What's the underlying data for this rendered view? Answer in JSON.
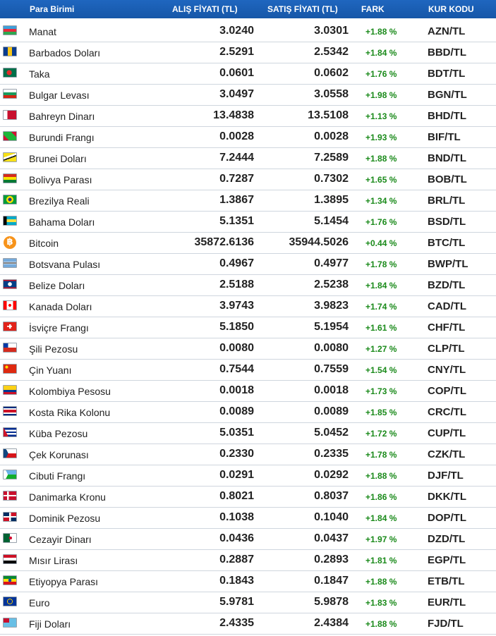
{
  "header": {
    "name": "Para Birimi",
    "buy": "ALIŞ FİYATI (TL)",
    "sell": "SATIŞ FİYATI (TL)",
    "diff": "FARK",
    "code": "KUR KODU"
  },
  "colors": {
    "header_bg": "#1a5fb4",
    "positive": "#1a8a1a",
    "row_border": "#cfd6de"
  },
  "rows": [
    {
      "name": "Manat",
      "buy": "3.0240",
      "sell": "3.0301",
      "diff": "+1.88 %",
      "code": "AZN/TL",
      "flag": "az"
    },
    {
      "name": "Barbados Doları",
      "buy": "2.5291",
      "sell": "2.5342",
      "diff": "+1.84 %",
      "code": "BBD/TL",
      "flag": "bb"
    },
    {
      "name": "Taka",
      "buy": "0.0601",
      "sell": "0.0602",
      "diff": "+1.76 %",
      "code": "BDT/TL",
      "flag": "bd"
    },
    {
      "name": "Bulgar Levası",
      "buy": "3.0497",
      "sell": "3.0558",
      "diff": "+1.98 %",
      "code": "BGN/TL",
      "flag": "bg"
    },
    {
      "name": "Bahreyn Dinarı",
      "buy": "13.4838",
      "sell": "13.5108",
      "diff": "+1.13 %",
      "code": "BHD/TL",
      "flag": "bh"
    },
    {
      "name": "Burundi Frangı",
      "buy": "0.0028",
      "sell": "0.0028",
      "diff": "+1.93 %",
      "code": "BIF/TL",
      "flag": "bi"
    },
    {
      "name": "Brunei Doları",
      "buy": "7.2444",
      "sell": "7.2589",
      "diff": "+1.88 %",
      "code": "BND/TL",
      "flag": "bn"
    },
    {
      "name": "Bolivya Parası",
      "buy": "0.7287",
      "sell": "0.7302",
      "diff": "+1.65 %",
      "code": "BOB/TL",
      "flag": "bo"
    },
    {
      "name": "Brezilya Reali",
      "buy": "1.3867",
      "sell": "1.3895",
      "diff": "+1.34 %",
      "code": "BRL/TL",
      "flag": "br"
    },
    {
      "name": "Bahama Doları",
      "buy": "5.1351",
      "sell": "5.1454",
      "diff": "+1.76 %",
      "code": "BSD/TL",
      "flag": "bs"
    },
    {
      "name": "Bitcoin",
      "buy": "35872.6136",
      "sell": "35944.5026",
      "diff": "+0.44 %",
      "code": "BTC/TL",
      "flag": "btc"
    },
    {
      "name": "Botsvana Pulası",
      "buy": "0.4967",
      "sell": "0.4977",
      "diff": "+1.78 %",
      "code": "BWP/TL",
      "flag": "bw"
    },
    {
      "name": "Belize Doları",
      "buy": "2.5188",
      "sell": "2.5238",
      "diff": "+1.84 %",
      "code": "BZD/TL",
      "flag": "bz"
    },
    {
      "name": "Kanada Doları",
      "buy": "3.9743",
      "sell": "3.9823",
      "diff": "+1.74 %",
      "code": "CAD/TL",
      "flag": "ca"
    },
    {
      "name": "İsviçre Frangı",
      "buy": "5.1850",
      "sell": "5.1954",
      "diff": "+1.61 %",
      "code": "CHF/TL",
      "flag": "ch"
    },
    {
      "name": "Şili Pezosu",
      "buy": "0.0080",
      "sell": "0.0080",
      "diff": "+1.27 %",
      "code": "CLP/TL",
      "flag": "cl"
    },
    {
      "name": "Çin Yuanı",
      "buy": "0.7544",
      "sell": "0.7559",
      "diff": "+1.54 %",
      "code": "CNY/TL",
      "flag": "cn"
    },
    {
      "name": "Kolombiya Pesosu",
      "buy": "0.0018",
      "sell": "0.0018",
      "diff": "+1.73 %",
      "code": "COP/TL",
      "flag": "co"
    },
    {
      "name": "Kosta Rika Kolonu",
      "buy": "0.0089",
      "sell": "0.0089",
      "diff": "+1.85 %",
      "code": "CRC/TL",
      "flag": "cr"
    },
    {
      "name": "Küba Pezosu",
      "buy": "5.0351",
      "sell": "5.0452",
      "diff": "+1.72 %",
      "code": "CUP/TL",
      "flag": "cu"
    },
    {
      "name": "Çek Korunası",
      "buy": "0.2330",
      "sell": "0.2335",
      "diff": "+1.78 %",
      "code": "CZK/TL",
      "flag": "cz"
    },
    {
      "name": "Cibuti Frangı",
      "buy": "0.0291",
      "sell": "0.0292",
      "diff": "+1.88 %",
      "code": "DJF/TL",
      "flag": "dj"
    },
    {
      "name": "Danimarka Kronu",
      "buy": "0.8021",
      "sell": "0.8037",
      "diff": "+1.86 %",
      "code": "DKK/TL",
      "flag": "dk"
    },
    {
      "name": "Dominik Pezosu",
      "buy": "0.1038",
      "sell": "0.1040",
      "diff": "+1.84 %",
      "code": "DOP/TL",
      "flag": "do"
    },
    {
      "name": "Cezayir Dinarı",
      "buy": "0.0436",
      "sell": "0.0437",
      "diff": "+1.97 %",
      "code": "DZD/TL",
      "flag": "dz"
    },
    {
      "name": "Mısır Lirası",
      "buy": "0.2887",
      "sell": "0.2893",
      "diff": "+1.81 %",
      "code": "EGP/TL",
      "flag": "eg"
    },
    {
      "name": "Etiyopya Parası",
      "buy": "0.1843",
      "sell": "0.1847",
      "diff": "+1.88 %",
      "code": "ETB/TL",
      "flag": "et"
    },
    {
      "name": "Euro",
      "buy": "5.9781",
      "sell": "5.9878",
      "diff": "+1.83 %",
      "code": "EUR/TL",
      "flag": "eu"
    },
    {
      "name": "Fiji Doları",
      "buy": "2.4335",
      "sell": "2.4384",
      "diff": "+1.88 %",
      "code": "FJD/TL",
      "flag": "fj"
    }
  ]
}
